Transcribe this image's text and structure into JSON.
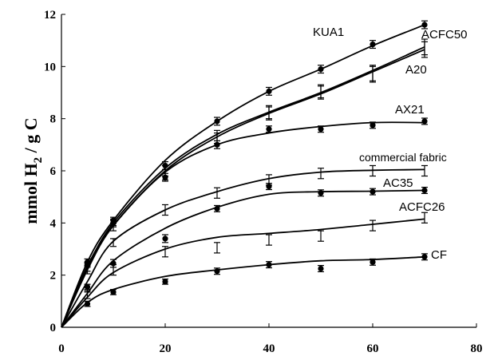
{
  "chart_data": {
    "type": "line",
    "title": "",
    "xlabel": "",
    "ylabel": {
      "prefix": "mmol H",
      "subscript": "2",
      "suffix": " / g C"
    },
    "xlim": [
      0,
      80
    ],
    "ylim": [
      0,
      12
    ],
    "xticks": [
      "0",
      "20",
      "40",
      "60",
      "80"
    ],
    "yticks": [
      "0",
      "2",
      "4",
      "6",
      "8",
      "10",
      "12"
    ],
    "grid": false,
    "legend": "none (series labelled directly on the curves)",
    "series": [
      {
        "name": "KUA1",
        "marker": "circle-with-errorbar",
        "x": [
          5,
          10,
          20,
          30,
          40,
          50,
          60,
          70
        ],
        "y": [
          2.5,
          4.1,
          6.2,
          7.9,
          9.05,
          9.9,
          10.85,
          11.6
        ],
        "err": [
          0.12,
          0.12,
          0.15,
          0.15,
          0.15,
          0.15,
          0.15,
          0.15
        ],
        "fit": [
          [
            0,
            0
          ],
          [
            5,
            2.5
          ],
          [
            10,
            4.1
          ],
          [
            20,
            6.4
          ],
          [
            30,
            7.9
          ],
          [
            40,
            9.05
          ],
          [
            50,
            9.9
          ],
          [
            60,
            10.8
          ],
          [
            70,
            11.6
          ]
        ]
      },
      {
        "name": "ACFC50",
        "marker": "errorbar",
        "x": [
          5,
          10,
          20,
          30,
          40,
          50,
          60,
          70
        ],
        "y": [
          2.3,
          4.0,
          6.0,
          7.35,
          8.25,
          9.05,
          9.75,
          10.75
        ],
        "err": [
          0.15,
          0.15,
          0.2,
          0.2,
          0.25,
          0.25,
          0.3,
          0.3
        ],
        "fit": [
          [
            0,
            0
          ],
          [
            5,
            2.3
          ],
          [
            10,
            4.0
          ],
          [
            20,
            6.1
          ],
          [
            30,
            7.4
          ],
          [
            40,
            8.25
          ],
          [
            50,
            9.0
          ],
          [
            60,
            9.85
          ],
          [
            70,
            10.75
          ]
        ]
      },
      {
        "name": "A20",
        "marker": "errorbar",
        "x": [
          5,
          10,
          20,
          30,
          40,
          50,
          60,
          70
        ],
        "y": [
          2.2,
          3.85,
          5.85,
          7.25,
          8.2,
          9.0,
          9.7,
          10.65
        ],
        "err": [
          0.15,
          0.15,
          0.2,
          0.2,
          0.25,
          0.25,
          0.3,
          0.3
        ],
        "fit": [
          [
            0,
            0
          ],
          [
            5,
            2.2
          ],
          [
            10,
            3.9
          ],
          [
            20,
            6.0
          ],
          [
            30,
            7.3
          ],
          [
            40,
            8.2
          ],
          [
            50,
            8.95
          ],
          [
            60,
            9.8
          ],
          [
            70,
            10.65
          ]
        ]
      },
      {
        "name": "AX21",
        "marker": "circle",
        "x": [
          5,
          10,
          20,
          30,
          40,
          50,
          60,
          70
        ],
        "y": [
          2.4,
          4.0,
          5.75,
          7.0,
          7.6,
          7.6,
          7.75,
          7.9
        ],
        "err": [
          0.1,
          0.1,
          0.15,
          0.15,
          0.12,
          0.12,
          0.12,
          0.12
        ],
        "fit": [
          [
            0,
            0
          ],
          [
            5,
            2.35
          ],
          [
            10,
            3.9
          ],
          [
            20,
            5.95
          ],
          [
            30,
            7.0
          ],
          [
            40,
            7.45
          ],
          [
            50,
            7.7
          ],
          [
            60,
            7.85
          ],
          [
            70,
            7.85
          ]
        ]
      },
      {
        "name": "commercial fabric",
        "marker": "errorbar",
        "x": [
          5,
          10,
          20,
          30,
          40,
          50,
          60,
          70
        ],
        "y": [
          1.5,
          3.25,
          4.5,
          5.15,
          5.65,
          5.9,
          6.0,
          6.0
        ],
        "err": [
          0.15,
          0.15,
          0.2,
          0.2,
          0.2,
          0.2,
          0.2,
          0.2
        ],
        "fit": [
          [
            0,
            0
          ],
          [
            5,
            1.75
          ],
          [
            10,
            3.3
          ],
          [
            20,
            4.5
          ],
          [
            30,
            5.2
          ],
          [
            40,
            5.7
          ],
          [
            50,
            5.95
          ],
          [
            60,
            6.02
          ],
          [
            70,
            6.05
          ]
        ]
      },
      {
        "name": "AC35",
        "marker": "circle",
        "x": [
          5,
          10,
          20,
          30,
          40,
          50,
          60,
          70
        ],
        "y": [
          1.55,
          2.45,
          3.4,
          4.55,
          5.4,
          5.15,
          5.2,
          5.25
        ],
        "err": [
          0.1,
          0.15,
          0.15,
          0.12,
          0.12,
          0.12,
          0.12,
          0.12
        ],
        "fit": [
          [
            0,
            0
          ],
          [
            5,
            1.3
          ],
          [
            10,
            2.55
          ],
          [
            20,
            3.8
          ],
          [
            30,
            4.6
          ],
          [
            40,
            5.1
          ],
          [
            50,
            5.2
          ],
          [
            60,
            5.22
          ],
          [
            70,
            5.25
          ]
        ]
      },
      {
        "name": "ACFC26",
        "marker": "errorbar",
        "x": [
          5,
          10,
          20,
          30,
          40,
          50,
          60,
          70
        ],
        "y": [
          1.25,
          2.2,
          2.9,
          3.05,
          3.35,
          3.5,
          3.9,
          4.2
        ],
        "err": [
          0.15,
          0.2,
          0.2,
          0.2,
          0.2,
          0.2,
          0.2,
          0.2
        ],
        "fit": [
          [
            0,
            0
          ],
          [
            5,
            1.15
          ],
          [
            10,
            2.1
          ],
          [
            20,
            3.0
          ],
          [
            30,
            3.45
          ],
          [
            40,
            3.6
          ],
          [
            50,
            3.75
          ],
          [
            60,
            3.95
          ],
          [
            70,
            4.15
          ]
        ]
      },
      {
        "name": "CF",
        "marker": "circle",
        "x": [
          5,
          10,
          20,
          30,
          40,
          50,
          60,
          70
        ],
        "y": [
          0.9,
          1.35,
          1.75,
          2.15,
          2.4,
          2.25,
          2.5,
          2.7
        ],
        "err": [
          0.1,
          0.1,
          0.1,
          0.12,
          0.12,
          0.12,
          0.12,
          0.12
        ],
        "fit": [
          [
            0,
            0
          ],
          [
            5,
            0.95
          ],
          [
            10,
            1.45
          ],
          [
            20,
            1.95
          ],
          [
            30,
            2.2
          ],
          [
            40,
            2.4
          ],
          [
            50,
            2.55
          ],
          [
            60,
            2.6
          ],
          [
            70,
            2.7
          ]
        ]
      }
    ],
    "labels": [
      "KUA1",
      "ACFC50",
      "A20",
      "AX21",
      "commercial fabric",
      "AC35",
      "ACFC26",
      "CF"
    ],
    "colors": {
      "ink": "#000000",
      "background": "#ffffff"
    }
  }
}
